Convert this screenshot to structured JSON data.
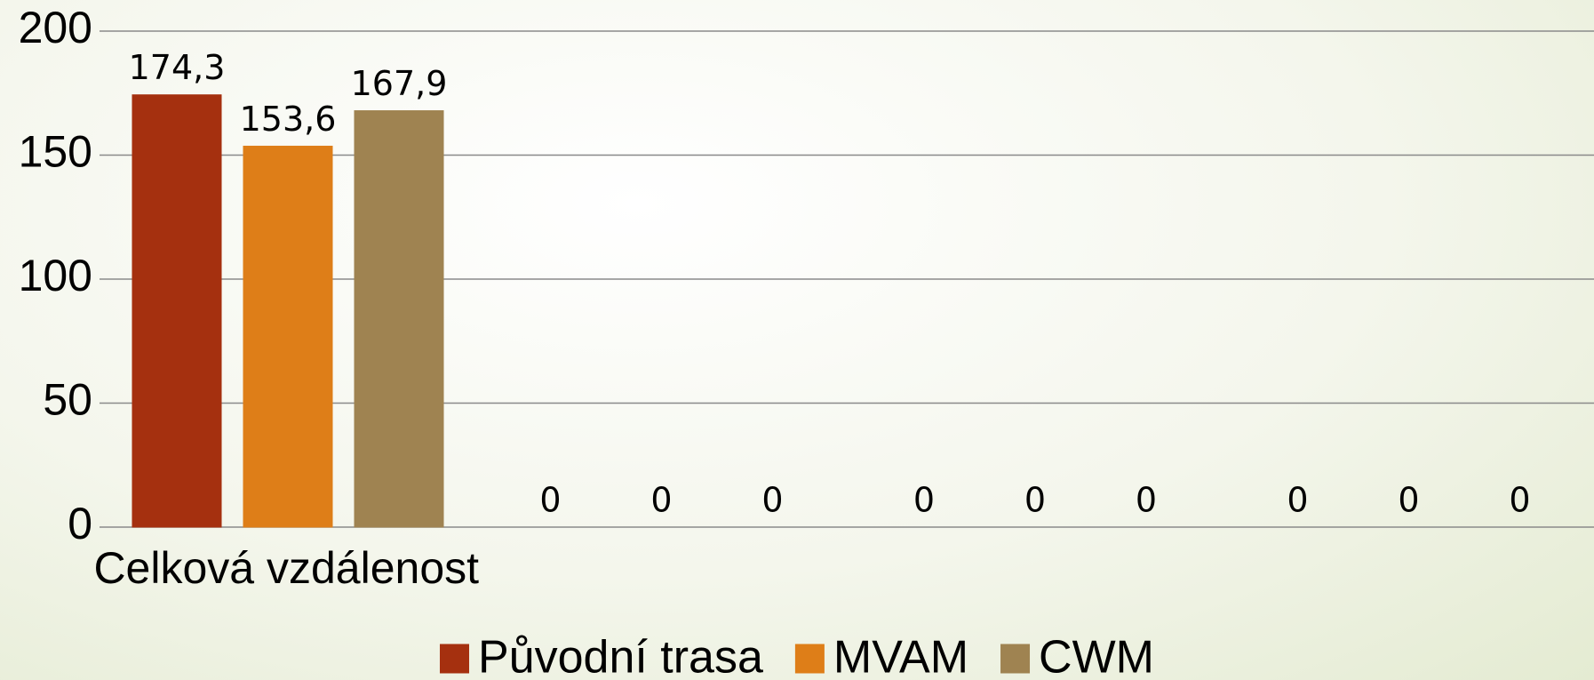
{
  "chart_data": {
    "type": "bar",
    "categories": [
      "Celková vzdálenost",
      null,
      null,
      null
    ],
    "series": [
      {
        "name": "Původní trasa",
        "color": "#a5300f",
        "values": [
          174.3,
          0,
          0,
          0
        ],
        "value_labels": [
          "174,3",
          "0",
          "0",
          "0"
        ]
      },
      {
        "name": "MVAM",
        "color": "#de7e18",
        "values": [
          153.6,
          0,
          0,
          0
        ],
        "value_labels": [
          "153,6",
          "0",
          "0",
          "0"
        ]
      },
      {
        "name": "CWM",
        "color": "#9f8351",
        "values": [
          167.9,
          0,
          0,
          0
        ],
        "value_labels": [
          "167,9",
          "0",
          "0",
          "0"
        ]
      }
    ],
    "ylim": [
      0,
      200
    ],
    "yticks": [
      0,
      50,
      100,
      150,
      200
    ],
    "grid": true,
    "legend": "bottom"
  }
}
